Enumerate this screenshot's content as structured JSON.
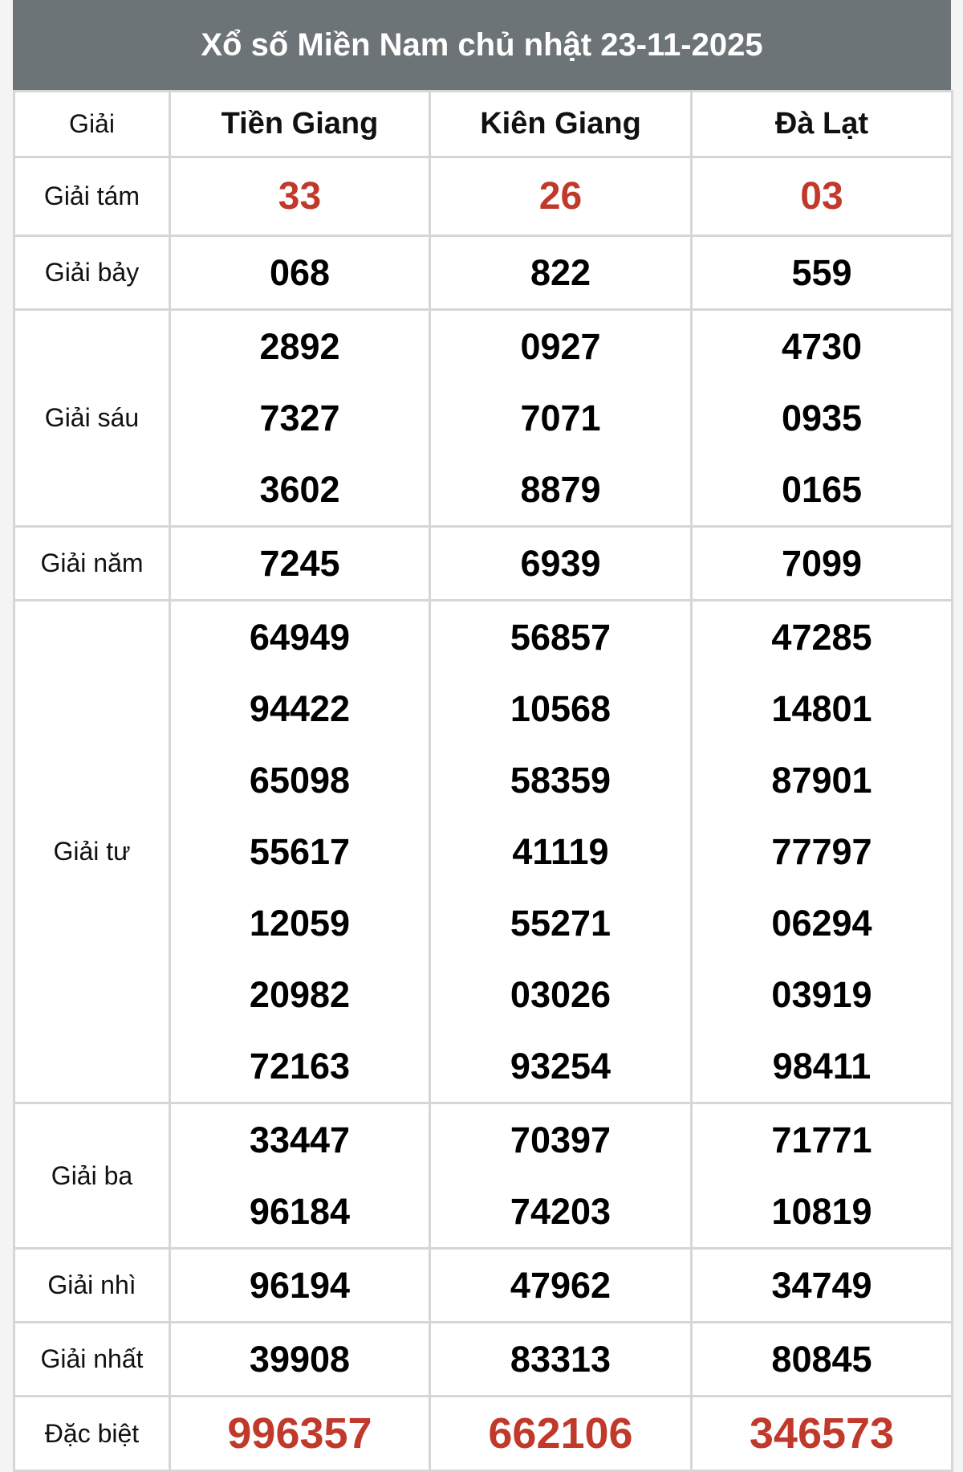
{
  "title": "Xổ số Miền Nam chủ nhật 23-11-2025",
  "header": {
    "label": "Giải",
    "provinces": [
      "Tiền Giang",
      "Kiên Giang",
      "Đà Lạt"
    ]
  },
  "colors": {
    "header_bg": "#6d7477",
    "highlight": "#c0392b",
    "border": "#d6d6d6"
  },
  "prizes": [
    {
      "label": "Giải tám",
      "highlight": true,
      "values": [
        [
          "33"
        ],
        [
          "26"
        ],
        [
          "03"
        ]
      ]
    },
    {
      "label": "Giải bảy",
      "values": [
        [
          "068"
        ],
        [
          "822"
        ],
        [
          "559"
        ]
      ]
    },
    {
      "label": "Giải sáu",
      "values": [
        [
          "2892",
          "7327",
          "3602"
        ],
        [
          "0927",
          "7071",
          "8879"
        ],
        [
          "4730",
          "0935",
          "0165"
        ]
      ]
    },
    {
      "label": "Giải năm",
      "values": [
        [
          "7245"
        ],
        [
          "6939"
        ],
        [
          "7099"
        ]
      ]
    },
    {
      "label": "Giải tư",
      "values": [
        [
          "64949",
          "94422",
          "65098",
          "55617",
          "12059",
          "20982",
          "72163"
        ],
        [
          "56857",
          "10568",
          "58359",
          "41119",
          "55271",
          "03026",
          "93254"
        ],
        [
          "47285",
          "14801",
          "87901",
          "77797",
          "06294",
          "03919",
          "98411"
        ]
      ]
    },
    {
      "label": "Giải ba",
      "values": [
        [
          "33447",
          "96184"
        ],
        [
          "70397",
          "74203"
        ],
        [
          "71771",
          "10819"
        ]
      ]
    },
    {
      "label": "Giải nhì",
      "values": [
        [
          "96194"
        ],
        [
          "47962"
        ],
        [
          "34749"
        ]
      ]
    },
    {
      "label": "Giải nhất",
      "values": [
        [
          "39908"
        ],
        [
          "83313"
        ],
        [
          "80845"
        ]
      ]
    },
    {
      "label": "Đặc biệt",
      "highlight": true,
      "values": [
        [
          "996357"
        ],
        [
          "662106"
        ],
        [
          "346573"
        ]
      ]
    }
  ]
}
